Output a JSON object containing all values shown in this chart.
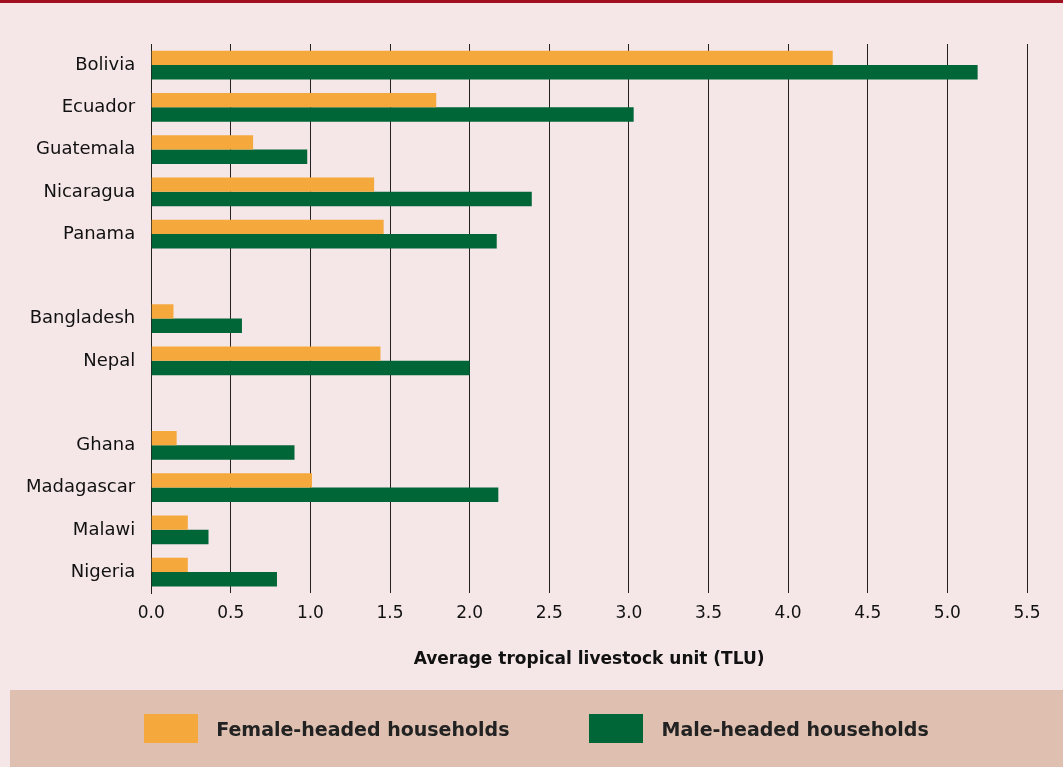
{
  "chart_data": {
    "type": "bar",
    "orientation": "horizontal",
    "xlabel": "Average tropical livestock unit (TLU)",
    "categories": [
      "Bolivia",
      "Ecuador",
      "Guatemala",
      "Nicaragua",
      "Panama",
      null,
      "Bangladesh",
      "Nepal",
      null,
      "Ghana",
      "Madagascar",
      "Malawi",
      "Nigeria"
    ],
    "series": [
      {
        "name": "Female-headed households",
        "color": "#f5a93c",
        "values": [
          4.28,
          1.79,
          0.64,
          1.4,
          1.46,
          null,
          0.14,
          1.44,
          null,
          0.16,
          1.01,
          0.23,
          0.23
        ]
      },
      {
        "name": "Male-headed households",
        "color": "#006537",
        "values": [
          5.19,
          3.03,
          0.98,
          2.39,
          2.17,
          null,
          0.57,
          2.0,
          null,
          0.9,
          2.18,
          0.36,
          0.79
        ]
      }
    ],
    "xlim": [
      0,
      5.5
    ],
    "xticks": [
      {
        "value": 0,
        "label": "0.0"
      },
      0.5,
      {
        "value": 1,
        "label": "1.0"
      },
      1.5,
      {
        "value": 2,
        "label": "2.0"
      },
      2.5,
      {
        "value": 3,
        "label": "3.0"
      },
      3.5,
      {
        "value": 4,
        "label": "4.0"
      },
      4.5,
      {
        "value": 5,
        "label": "5.0"
      },
      5.5
    ],
    "grid": "x",
    "legend": "bottom"
  }
}
